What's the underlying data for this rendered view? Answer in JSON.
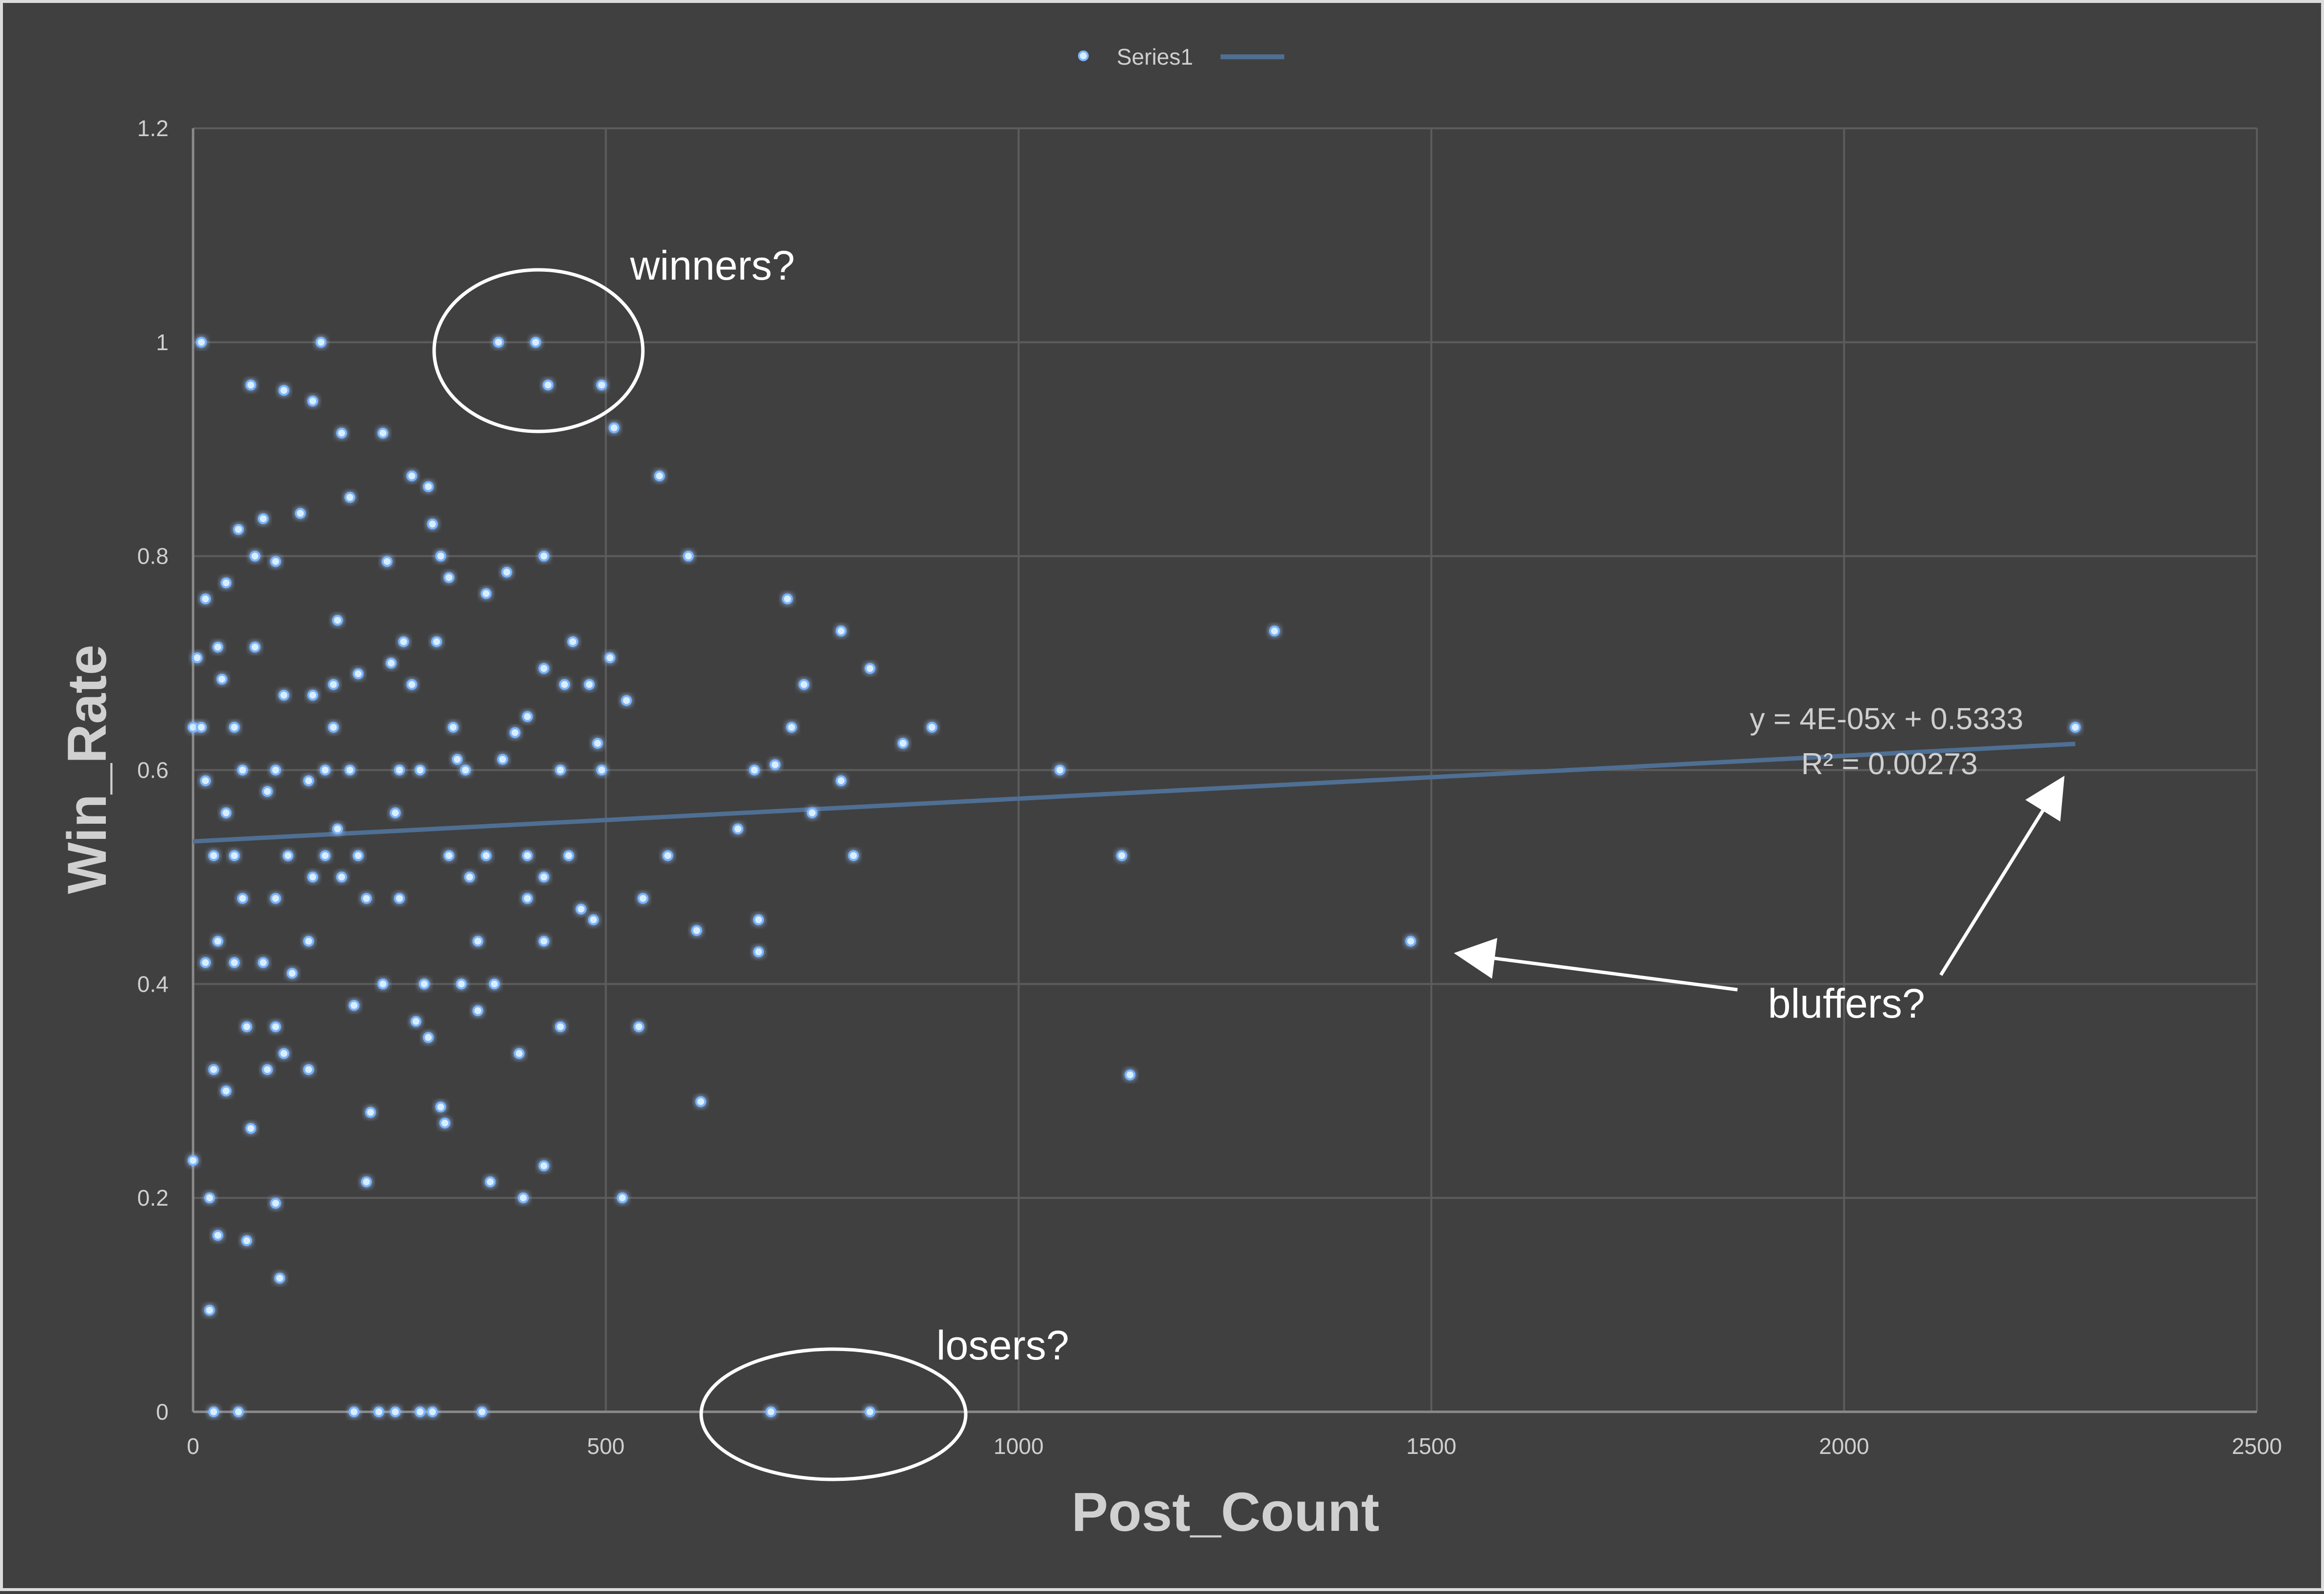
{
  "chart_data": {
    "type": "scatter",
    "xlabel": "Post_Count",
    "ylabel": "Win_Rate",
    "xlim": [
      0,
      2500
    ],
    "ylim": [
      0,
      1.2
    ],
    "x_ticks": [
      0,
      500,
      1000,
      1500,
      2000,
      2500
    ],
    "y_ticks": [
      0,
      0.2,
      0.4,
      0.6,
      0.8,
      1,
      1.2
    ],
    "x_tick_labels": [
      "0",
      "500",
      "1000",
      "1500",
      "2000",
      "2500"
    ],
    "y_tick_labels": [
      "0",
      "0.2",
      "0.4",
      "0.6",
      "0.8",
      "1",
      "1.2"
    ],
    "grid": true,
    "legend": {
      "position": "top-center",
      "entries": [
        "Series1"
      ]
    },
    "series": [
      {
        "name": "Series1",
        "color": "#7ab4ff",
        "points": [
          [
            10,
            1.0
          ],
          [
            155,
            1.0
          ],
          [
            370,
            1.0
          ],
          [
            415,
            1.0
          ],
          [
            70,
            0.96
          ],
          [
            110,
            0.955
          ],
          [
            145,
            0.945
          ],
          [
            430,
            0.96
          ],
          [
            495,
            0.96
          ],
          [
            180,
            0.915
          ],
          [
            230,
            0.915
          ],
          [
            510,
            0.92
          ],
          [
            565,
            0.875
          ],
          [
            265,
            0.875
          ],
          [
            285,
            0.865
          ],
          [
            190,
            0.855
          ],
          [
            130,
            0.84
          ],
          [
            85,
            0.835
          ],
          [
            55,
            0.825
          ],
          [
            290,
            0.83
          ],
          [
            600,
            0.8
          ],
          [
            425,
            0.8
          ],
          [
            300,
            0.8
          ],
          [
            235,
            0.795
          ],
          [
            100,
            0.795
          ],
          [
            75,
            0.8
          ],
          [
            380,
            0.785
          ],
          [
            310,
            0.78
          ],
          [
            40,
            0.775
          ],
          [
            15,
            0.76
          ],
          [
            355,
            0.765
          ],
          [
            720,
            0.76
          ],
          [
            1310,
            0.73
          ],
          [
            785,
            0.73
          ],
          [
            175,
            0.74
          ],
          [
            255,
            0.72
          ],
          [
            460,
            0.72
          ],
          [
            295,
            0.72
          ],
          [
            75,
            0.715
          ],
          [
            30,
            0.715
          ],
          [
            5,
            0.705
          ],
          [
            505,
            0.705
          ],
          [
            240,
            0.7
          ],
          [
            425,
            0.695
          ],
          [
            820,
            0.695
          ],
          [
            200,
            0.69
          ],
          [
            480,
            0.68
          ],
          [
            740,
            0.68
          ],
          [
            450,
            0.68
          ],
          [
            265,
            0.68
          ],
          [
            170,
            0.68
          ],
          [
            35,
            0.685
          ],
          [
            525,
            0.665
          ],
          [
            405,
            0.65
          ],
          [
            145,
            0.67
          ],
          [
            110,
            0.67
          ],
          [
            0,
            0.64
          ],
          [
            10,
            0.64
          ],
          [
            50,
            0.64
          ],
          [
            170,
            0.64
          ],
          [
            315,
            0.64
          ],
          [
            390,
            0.635
          ],
          [
            725,
            0.64
          ],
          [
            895,
            0.64
          ],
          [
            2280,
            0.64
          ],
          [
            860,
            0.625
          ],
          [
            490,
            0.625
          ],
          [
            320,
            0.61
          ],
          [
            375,
            0.61
          ],
          [
            60,
            0.6
          ],
          [
            100,
            0.6
          ],
          [
            160,
            0.6
          ],
          [
            190,
            0.6
          ],
          [
            250,
            0.6
          ],
          [
            275,
            0.6
          ],
          [
            330,
            0.6
          ],
          [
            445,
            0.6
          ],
          [
            495,
            0.6
          ],
          [
            680,
            0.6
          ],
          [
            1050,
            0.6
          ],
          [
            705,
            0.605
          ],
          [
            785,
            0.59
          ],
          [
            15,
            0.59
          ],
          [
            140,
            0.59
          ],
          [
            90,
            0.58
          ],
          [
            40,
            0.56
          ],
          [
            245,
            0.56
          ],
          [
            750,
            0.56
          ],
          [
            175,
            0.545
          ],
          [
            660,
            0.545
          ],
          [
            25,
            0.52
          ],
          [
            50,
            0.52
          ],
          [
            115,
            0.52
          ],
          [
            160,
            0.52
          ],
          [
            200,
            0.52
          ],
          [
            310,
            0.52
          ],
          [
            355,
            0.52
          ],
          [
            405,
            0.52
          ],
          [
            455,
            0.52
          ],
          [
            575,
            0.52
          ],
          [
            800,
            0.52
          ],
          [
            1125,
            0.52
          ],
          [
            145,
            0.5
          ],
          [
            180,
            0.5
          ],
          [
            335,
            0.5
          ],
          [
            425,
            0.5
          ],
          [
            60,
            0.48
          ],
          [
            100,
            0.48
          ],
          [
            210,
            0.48
          ],
          [
            250,
            0.48
          ],
          [
            405,
            0.48
          ],
          [
            545,
            0.48
          ],
          [
            470,
            0.47
          ],
          [
            485,
            0.46
          ],
          [
            685,
            0.46
          ],
          [
            30,
            0.44
          ],
          [
            140,
            0.44
          ],
          [
            345,
            0.44
          ],
          [
            425,
            0.44
          ],
          [
            610,
            0.45
          ],
          [
            1475,
            0.44
          ],
          [
            685,
            0.43
          ],
          [
            50,
            0.42
          ],
          [
            15,
            0.42
          ],
          [
            85,
            0.42
          ],
          [
            120,
            0.41
          ],
          [
            230,
            0.4
          ],
          [
            280,
            0.4
          ],
          [
            325,
            0.4
          ],
          [
            365,
            0.4
          ],
          [
            195,
            0.38
          ],
          [
            345,
            0.375
          ],
          [
            65,
            0.36
          ],
          [
            100,
            0.36
          ],
          [
            445,
            0.36
          ],
          [
            540,
            0.36
          ],
          [
            270,
            0.365
          ],
          [
            285,
            0.35
          ],
          [
            110,
            0.335
          ],
          [
            395,
            0.335
          ],
          [
            25,
            0.32
          ],
          [
            90,
            0.32
          ],
          [
            140,
            0.32
          ],
          [
            1135,
            0.315
          ],
          [
            40,
            0.3
          ],
          [
            615,
            0.29
          ],
          [
            300,
            0.285
          ],
          [
            215,
            0.28
          ],
          [
            305,
            0.27
          ],
          [
            70,
            0.265
          ],
          [
            0,
            0.235
          ],
          [
            425,
            0.23
          ],
          [
            360,
            0.215
          ],
          [
            210,
            0.215
          ],
          [
            100,
            0.195
          ],
          [
            20,
            0.2
          ],
          [
            400,
            0.2
          ],
          [
            520,
            0.2
          ],
          [
            30,
            0.165
          ],
          [
            65,
            0.16
          ],
          [
            105,
            0.125
          ],
          [
            20,
            0.095
          ],
          [
            25,
            0.0
          ],
          [
            55,
            0.0
          ],
          [
            195,
            0.0
          ],
          [
            225,
            0.0
          ],
          [
            245,
            0.0
          ],
          [
            275,
            0.0
          ],
          [
            290,
            0.0
          ],
          [
            350,
            0.0
          ],
          [
            700,
            0.0
          ],
          [
            820,
            0.0
          ]
        ]
      }
    ],
    "trendline": {
      "type": "linear",
      "slope": 4e-05,
      "intercept": 0.5333,
      "x_range": [
        0,
        2280
      ],
      "color": "#4f6f93",
      "equation": "y = 4E-05x + 0.5333",
      "r_squared": "R² = 0.00273"
    },
    "annotations": [
      {
        "id": "winners",
        "text": "winners?"
      },
      {
        "id": "losers",
        "text": "losers?"
      },
      {
        "id": "bluffers",
        "text": "bluffers?"
      }
    ]
  }
}
